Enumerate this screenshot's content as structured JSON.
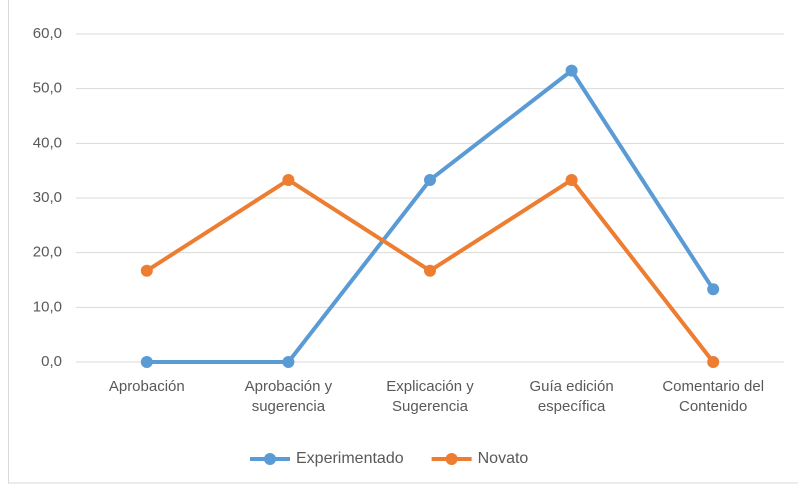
{
  "chart_data": {
    "type": "line",
    "categories": [
      "Aprobación",
      "Aprobación y sugerencia",
      "Explicación y Sugerencia",
      "Guía edición específica",
      "Comentario del Contenido"
    ],
    "series": [
      {
        "name": "Experimentado",
        "color": "#5b9bd5",
        "values": [
          0,
          0,
          33.3,
          53.3,
          13.3
        ]
      },
      {
        "name": "Novato",
        "color": "#ed7d31",
        "values": [
          16.7,
          33.3,
          16.7,
          33.3,
          0
        ]
      }
    ],
    "ylim": [
      0,
      60
    ],
    "yticks": [
      {
        "value": 0,
        "label": "0,0"
      },
      {
        "value": 10,
        "label": "10,0"
      },
      {
        "value": 20,
        "label": "20,0"
      },
      {
        "value": 30,
        "label": "30,0"
      },
      {
        "value": 40,
        "label": "40,0"
      },
      {
        "value": 50,
        "label": "50,0"
      },
      {
        "value": 60,
        "label": "60,0"
      }
    ],
    "grid": true,
    "legend": "bottom"
  }
}
